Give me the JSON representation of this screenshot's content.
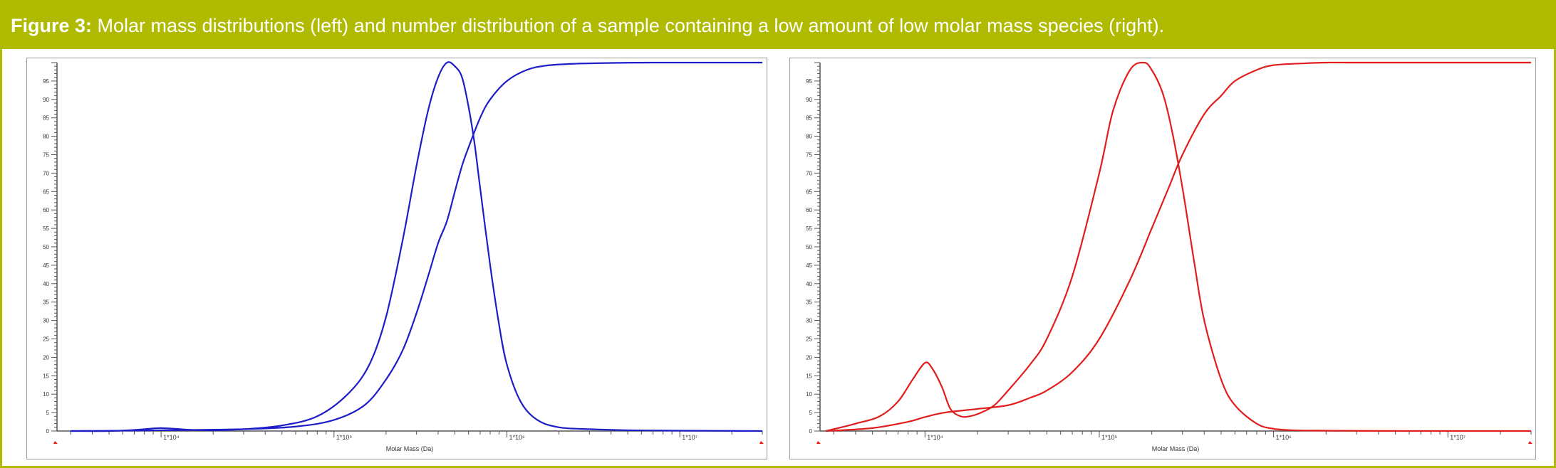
{
  "caption": {
    "lead": "Figure 3:",
    "text": "Molar mass distributions (left) and number distribution of a sample containing a low amount of low molar mass species (right)."
  },
  "colors": {
    "caption_bar": "#b0ba00",
    "left_series": "#1e1ec8",
    "right_series": "#e01e1e",
    "axis": "#555555"
  },
  "chart_data": [
    {
      "type": "line",
      "panel": "left",
      "title": "",
      "xlabel": "Molar Mass (Da)",
      "ylabel": "",
      "x_scale": "log",
      "xlim": [
        2500,
        30000000
      ],
      "ylim": [
        0,
        100
      ],
      "x_tick_labels": [
        {
          "label": "1*10⁴",
          "value": 10000
        },
        {
          "label": "1*10⁵",
          "value": 100000
        },
        {
          "label": "1*10⁶",
          "value": 1000000
        },
        {
          "label": "1*10⁷",
          "value": 10000000
        }
      ],
      "y_tick_labels": [
        0,
        5,
        10,
        15,
        20,
        25,
        30,
        35,
        40,
        45,
        50,
        55,
        60,
        65,
        70,
        75,
        80,
        85,
        90,
        95
      ],
      "grid": false,
      "legend": "none",
      "series": [
        {
          "kind": "distribution",
          "x": [
            3000,
            5000,
            7000,
            9000,
            10000,
            12000,
            15000,
            20000,
            30000,
            50000,
            80000,
            120000,
            160000,
            200000,
            250000,
            300000,
            350000,
            400000,
            450000,
            500000,
            550000,
            600000,
            650000,
            700000,
            800000,
            900000,
            1000000,
            1200000,
            1500000,
            2000000,
            3000000,
            5000000,
            10000000,
            30000000
          ],
          "y": [
            0,
            0,
            0.3,
            0.7,
            0.8,
            0.6,
            0.3,
            0.2,
            0.5,
            1.5,
            4,
            10,
            18,
            31,
            52,
            72,
            87,
            96,
            100,
            99,
            96,
            88,
            78,
            66,
            45,
            29,
            18,
            8,
            3,
            1,
            0.5,
            0.2,
            0.1,
            0
          ]
        },
        {
          "kind": "cumulative",
          "x": [
            3000,
            10000,
            30000,
            60000,
            100000,
            150000,
            200000,
            250000,
            300000,
            350000,
            400000,
            450000,
            500000,
            550000,
            600000,
            700000,
            800000,
            1000000,
            1300000,
            1700000,
            2500000,
            4000000,
            7000000,
            30000000
          ],
          "y": [
            0,
            0.2,
            0.5,
            1.2,
            3,
            7,
            14,
            22,
            32,
            42,
            51,
            57,
            65,
            72,
            77,
            85,
            90,
            95,
            98,
            99.2,
            99.7,
            99.9,
            100,
            100
          ]
        }
      ]
    },
    {
      "type": "line",
      "panel": "right",
      "title": "",
      "xlabel": "Molar Mass (Da)",
      "ylabel": "",
      "x_scale": "log",
      "xlim": [
        2500,
        30000000
      ],
      "ylim": [
        0,
        100
      ],
      "x_tick_labels": [
        {
          "label": "1*10⁴",
          "value": 10000
        },
        {
          "label": "1*10⁵",
          "value": 100000
        },
        {
          "label": "1*10⁶",
          "value": 1000000
        },
        {
          "label": "1*10⁷",
          "value": 10000000
        }
      ],
      "y_tick_labels": [
        0,
        5,
        10,
        15,
        20,
        25,
        30,
        35,
        40,
        45,
        50,
        55,
        60,
        65,
        70,
        75,
        80,
        85,
        90,
        95
      ],
      "grid": false,
      "legend": "none",
      "series": [
        {
          "kind": "distribution",
          "x": [
            2700,
            4000,
            5500,
            7000,
            8500,
            10000,
            11000,
            12500,
            14000,
            16000,
            18000,
            21000,
            25000,
            30000,
            40000,
            50000,
            70000,
            100000,
            120000,
            150000,
            180000,
            200000,
            230000,
            260000,
            300000,
            350000,
            400000,
            500000,
            600000,
            800000,
            1000000,
            1300000,
            2000000,
            3000000,
            10000000,
            30000000
          ],
          "y": [
            0,
            2,
            4,
            8,
            14,
            18.5,
            17,
            12,
            6,
            4,
            4,
            5,
            7,
            11,
            18,
            25,
            42,
            70,
            87,
            98,
            100,
            98,
            92,
            82,
            66,
            46,
            30,
            14,
            7,
            2,
            0.6,
            0.2,
            0.1,
            0.05,
            0,
            0
          ]
        },
        {
          "kind": "cumulative",
          "x": [
            2700,
            5000,
            8000,
            10000,
            13000,
            20000,
            30000,
            40000,
            50000,
            70000,
            100000,
            150000,
            200000,
            250000,
            300000,
            400000,
            500000,
            600000,
            800000,
            1000000,
            1500000,
            2000000,
            3000000,
            30000000
          ],
          "y": [
            0,
            0.8,
            2.5,
            3.8,
            5,
            6,
            7,
            9,
            11,
            16,
            25,
            41,
            55,
            66,
            75,
            86,
            91,
            95,
            98,
            99.3,
            99.8,
            100,
            100,
            100
          ]
        }
      ]
    }
  ]
}
